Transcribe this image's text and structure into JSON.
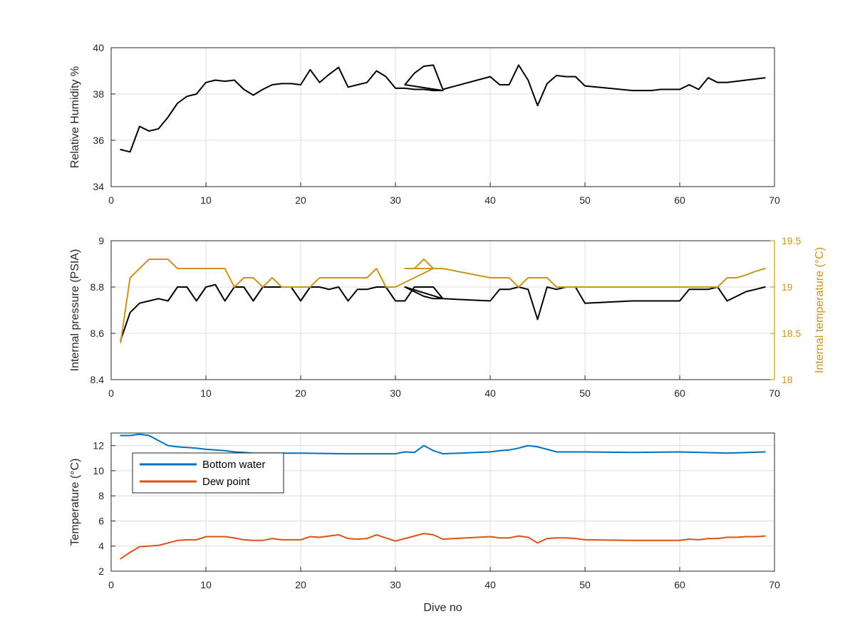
{
  "chart_data": [
    {
      "type": "line",
      "xlabel": "",
      "ylabel": "Relative Humidity %",
      "xlim": [
        0,
        70
      ],
      "ylim": [
        34,
        40
      ],
      "xticks": [
        0,
        10,
        20,
        30,
        40,
        50,
        60,
        70
      ],
      "yticks": [
        34,
        36,
        38,
        40
      ],
      "grid": true,
      "series": [
        {
          "color": "#000000",
          "x": [
            1,
            2,
            3,
            4,
            5,
            6,
            7,
            8,
            9,
            10,
            11,
            12,
            13,
            14,
            15,
            16,
            17,
            18,
            19,
            20,
            21,
            22,
            23,
            24,
            25,
            26,
            27,
            28,
            29,
            30,
            31,
            32,
            33,
            34,
            35,
            31,
            32,
            33,
            34,
            35,
            40,
            41,
            42,
            43,
            44,
            45,
            46,
            47,
            48,
            49,
            50,
            55,
            56,
            57,
            58,
            59,
            60,
            61,
            62,
            63,
            64,
            65,
            66,
            67,
            68,
            69
          ],
          "y": [
            35.6,
            35.5,
            36.6,
            36.4,
            36.5,
            37.0,
            37.6,
            37.9,
            38.0,
            38.5,
            38.6,
            38.55,
            38.6,
            38.2,
            37.95,
            38.2,
            38.4,
            38.45,
            38.45,
            38.4,
            39.05,
            38.5,
            38.85,
            39.15,
            38.3,
            38.4,
            38.5,
            39.0,
            38.75,
            38.25,
            38.25,
            38.2,
            38.2,
            38.15,
            38.15,
            38.4,
            38.9,
            39.2,
            39.25,
            38.2,
            38.75,
            38.4,
            38.4,
            39.25,
            38.6,
            37.5,
            38.45,
            38.8,
            38.75,
            38.75,
            38.35,
            38.15,
            38.15,
            38.15,
            38.2,
            38.2,
            38.2,
            38.4,
            38.2,
            38.7,
            38.5,
            38.5,
            38.55,
            38.6,
            38.65,
            38.7
          ]
        }
      ]
    },
    {
      "type": "line",
      "xlabel": "",
      "ylabel": "Internal pressure (PSIA)",
      "ylabel_right": "Internal temperature (°C)",
      "xlim": [
        0,
        70
      ],
      "ylim": [
        8.4,
        9.0
      ],
      "ylim_right": [
        18,
        19.5
      ],
      "xticks": [
        0,
        10,
        20,
        30,
        40,
        50,
        60,
        70
      ],
      "yticks": [
        8.4,
        8.6,
        8.8,
        9.0
      ],
      "yticks_right": [
        18,
        18.5,
        19,
        19.5
      ],
      "ytick_labels": [
        "8.4",
        "8.6",
        "8.8",
        "9"
      ],
      "ytick_labels_right": [
        "18",
        "18.5",
        "19",
        "19.5"
      ],
      "grid": true,
      "series": [
        {
          "axis": "left",
          "color": "#000000",
          "x": [
            1,
            2,
            3,
            4,
            5,
            6,
            7,
            8,
            9,
            10,
            11,
            12,
            13,
            14,
            15,
            16,
            17,
            18,
            19,
            20,
            21,
            22,
            23,
            24,
            25,
            26,
            27,
            28,
            29,
            30,
            31,
            32,
            33,
            34,
            35,
            31,
            33,
            34,
            35,
            40,
            41,
            42,
            43,
            44,
            45,
            46,
            47,
            48,
            49,
            50,
            55,
            60,
            61,
            62,
            63,
            64,
            65,
            66,
            67,
            68,
            69
          ],
          "y": [
            8.57,
            8.69,
            8.73,
            8.74,
            8.75,
            8.74,
            8.8,
            8.8,
            8.74,
            8.8,
            8.81,
            8.74,
            8.8,
            8.8,
            8.74,
            8.8,
            8.8,
            8.8,
            8.8,
            8.74,
            8.8,
            8.8,
            8.79,
            8.8,
            8.74,
            8.79,
            8.79,
            8.8,
            8.8,
            8.74,
            8.74,
            8.8,
            8.8,
            8.8,
            8.75,
            8.8,
            8.76,
            8.75,
            8.75,
            8.74,
            8.79,
            8.79,
            8.8,
            8.79,
            8.66,
            8.8,
            8.79,
            8.8,
            8.8,
            8.73,
            8.74,
            8.74,
            8.79,
            8.79,
            8.79,
            8.8,
            8.74,
            8.76,
            8.78,
            8.79,
            8.8
          ]
        },
        {
          "axis": "right",
          "color": "#c8961e",
          "x": [
            1,
            2,
            3,
            4,
            5,
            6,
            7,
            8,
            9,
            10,
            11,
            12,
            13,
            14,
            15,
            16,
            17,
            18,
            19,
            20,
            21,
            22,
            23,
            24,
            25,
            26,
            27,
            28,
            29,
            30,
            31,
            32,
            33,
            34,
            35,
            31,
            32,
            33,
            34,
            35,
            40,
            41,
            42,
            43,
            44,
            45,
            46,
            47,
            48,
            49,
            50,
            55,
            60,
            61,
            62,
            63,
            64,
            65,
            66,
            67,
            68,
            69
          ],
          "y": [
            18.4,
            19.1,
            19.2,
            19.3,
            19.3,
            19.3,
            19.2,
            19.2,
            19.2,
            19.2,
            19.2,
            19.2,
            19.0,
            19.1,
            19.1,
            19.0,
            19.1,
            19.0,
            19.0,
            19.0,
            19.0,
            19.1,
            19.1,
            19.1,
            19.1,
            19.1,
            19.1,
            19.2,
            19.0,
            19.0,
            19.05,
            19.1,
            19.15,
            19.2,
            19.2,
            19.2,
            19.2,
            19.3,
            19.2,
            19.2,
            19.1,
            19.1,
            19.1,
            19.0,
            19.1,
            19.1,
            19.1,
            19.0,
            19.0,
            19.0,
            19.0,
            19.0,
            19.0,
            19.0,
            19.0,
            19.0,
            19.0,
            19.1,
            19.1,
            19.13,
            19.17,
            19.2
          ]
        }
      ]
    },
    {
      "type": "line",
      "xlabel": "Dive no",
      "ylabel": "Temperature (°C)",
      "xlim": [
        0,
        70
      ],
      "ylim": [
        2,
        13
      ],
      "xticks": [
        0,
        10,
        20,
        30,
        40,
        50,
        60,
        70
      ],
      "yticks": [
        2,
        4,
        6,
        8,
        10,
        12
      ],
      "grid": true,
      "legend": "top-left",
      "series": [
        {
          "name": "Bottom water",
          "color": "#0072bd",
          "x": [
            1,
            2,
            3,
            4,
            5,
            6,
            7,
            8,
            9,
            10,
            11,
            12,
            13,
            14,
            15,
            20,
            25,
            30,
            31,
            32,
            33,
            34,
            35,
            40,
            41,
            42,
            43,
            44,
            45,
            46,
            47,
            48,
            50,
            55,
            60,
            65,
            69
          ],
          "y": [
            12.8,
            12.8,
            12.9,
            12.8,
            12.4,
            12.0,
            11.9,
            11.85,
            11.8,
            11.7,
            11.65,
            11.6,
            11.5,
            11.45,
            11.4,
            11.4,
            11.35,
            11.35,
            11.5,
            11.45,
            12.0,
            11.6,
            11.35,
            11.5,
            11.6,
            11.65,
            11.8,
            12.0,
            11.9,
            11.7,
            11.5,
            11.5,
            11.5,
            11.45,
            11.5,
            11.4,
            11.5
          ]
        },
        {
          "name": "Dew point",
          "color": "#d95319",
          "x": [
            1,
            2,
            3,
            4,
            5,
            6,
            7,
            8,
            9,
            10,
            11,
            12,
            13,
            14,
            15,
            16,
            17,
            18,
            19,
            20,
            21,
            22,
            23,
            24,
            25,
            26,
            27,
            28,
            29,
            30,
            31,
            32,
            33,
            34,
            35,
            40,
            41,
            42,
            43,
            44,
            45,
            46,
            47,
            48,
            49,
            50,
            55,
            60,
            61,
            62,
            63,
            64,
            65,
            66,
            67,
            68,
            69
          ],
          "y": [
            3.0,
            3.5,
            3.95,
            4.0,
            4.05,
            4.25,
            4.45,
            4.5,
            4.5,
            4.75,
            4.75,
            4.75,
            4.65,
            4.5,
            4.45,
            4.45,
            4.6,
            4.5,
            4.5,
            4.5,
            4.75,
            4.7,
            4.8,
            4.9,
            4.6,
            4.55,
            4.6,
            4.9,
            4.65,
            4.4,
            4.6,
            4.8,
            5.0,
            4.9,
            4.55,
            4.75,
            4.65,
            4.65,
            4.8,
            4.7,
            4.25,
            4.6,
            4.65,
            4.65,
            4.6,
            4.5,
            4.45,
            4.45,
            4.55,
            4.5,
            4.6,
            4.6,
            4.7,
            4.7,
            4.75,
            4.75,
            4.8
          ]
        }
      ]
    }
  ]
}
